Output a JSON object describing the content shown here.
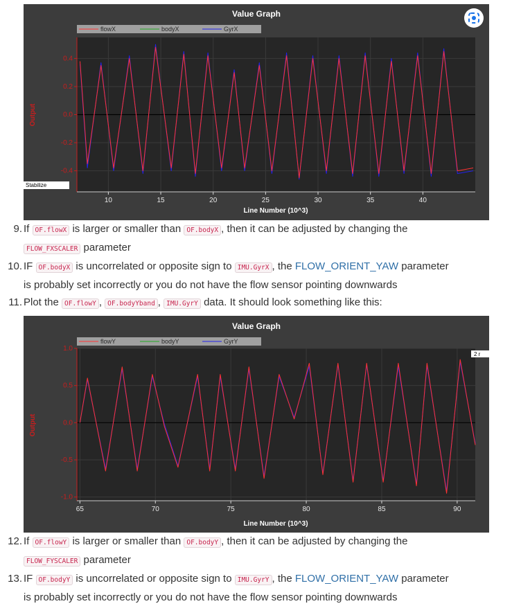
{
  "graph1": {
    "title": "Value Graph",
    "mode_label": "Stabilize",
    "xlabel": "Line Number (10^3)",
    "ylabel": "Output",
    "legend": [
      "flowX",
      "bodyX",
      "GyrX"
    ],
    "colors": {
      "series1": "#ff3333",
      "series2": "#22aa22",
      "series3": "#2222ee",
      "axis": "#c81e1e"
    },
    "lens_icon": "google-lens-icon",
    "chart_data": {
      "type": "line",
      "xlim": [
        7,
        45
      ],
      "ylim": [
        -0.55,
        0.55
      ],
      "x_ticks": [
        10,
        15,
        20,
        25,
        30,
        35,
        40
      ],
      "y_ticks": [
        "0.4",
        "0.2",
        "0.0",
        "-0.2",
        "-0.4"
      ],
      "y_tick_values": [
        0.4,
        0.2,
        0.0,
        -0.2,
        -0.4
      ],
      "series": [
        {
          "name": "flowX",
          "x": [
            7.3,
            8.0,
            9.3,
            10.5,
            12.0,
            13.3,
            14.5,
            16.0,
            17.2,
            18.3,
            19.5,
            20.8,
            22.0,
            23.0,
            24.4,
            25.6,
            27.0,
            28.2,
            29.5,
            30.8,
            32.0,
            33.3,
            34.5,
            35.8,
            37.0,
            38.2,
            39.5,
            40.8,
            42.0,
            43.3,
            44.8
          ],
          "y": [
            0.38,
            -0.35,
            0.35,
            -0.38,
            0.4,
            -0.4,
            0.48,
            -0.38,
            0.43,
            -0.42,
            0.42,
            -0.38,
            0.3,
            -0.38,
            0.35,
            -0.4,
            0.42,
            -0.45,
            0.4,
            -0.4,
            0.4,
            -0.42,
            0.42,
            -0.42,
            0.38,
            -0.4,
            0.42,
            -0.42,
            0.45,
            -0.4,
            -0.38
          ]
        },
        {
          "name": "bodyX",
          "x": [],
          "y": []
        },
        {
          "name": "GyrX",
          "x": [
            7.3,
            8.0,
            9.3,
            10.5,
            12.0,
            13.3,
            14.5,
            16.0,
            17.2,
            18.3,
            19.5,
            20.8,
            22.0,
            23.0,
            24.4,
            25.6,
            27.0,
            28.2,
            29.5,
            30.8,
            32.0,
            33.3,
            34.5,
            35.8,
            37.0,
            38.2,
            39.5,
            40.8,
            42.0,
            43.3,
            44.8
          ],
          "y": [
            0.36,
            -0.38,
            0.37,
            -0.4,
            0.42,
            -0.42,
            0.5,
            -0.4,
            0.45,
            -0.44,
            0.44,
            -0.4,
            0.32,
            -0.4,
            0.37,
            -0.42,
            0.44,
            -0.46,
            0.42,
            -0.42,
            0.42,
            -0.44,
            0.44,
            -0.44,
            0.4,
            -0.42,
            0.44,
            -0.44,
            0.47,
            -0.42,
            -0.4
          ]
        }
      ]
    }
  },
  "graph2": {
    "title": "Value Graph",
    "xlabel": "Line Number (10^3)",
    "ylabel": "Output",
    "corner_label": "2 r",
    "legend": [
      "flowY",
      "bodyY",
      "GyrY"
    ],
    "colors": {
      "series1": "#ff3333",
      "series2": "#22aa22",
      "series3": "#2222ee",
      "axis": "#c81e1e"
    },
    "chart_data": {
      "type": "line",
      "xlim": [
        64.8,
        91.2
      ],
      "ylim": [
        -1.05,
        1.0
      ],
      "x_ticks": [
        65,
        70,
        75,
        80,
        85,
        90
      ],
      "y_ticks": [
        "1.0",
        "0.5",
        "0.0",
        "-0.5",
        "-1.0"
      ],
      "y_tick_values": [
        1.0,
        0.5,
        0.0,
        -0.5,
        -1.0
      ],
      "series": [
        {
          "name": "flowY",
          "x": [
            65.0,
            65.5,
            66.7,
            67.8,
            68.8,
            69.8,
            70.6,
            71.5,
            72.8,
            73.6,
            74.3,
            75.3,
            76.2,
            77.2,
            78.2,
            79.2,
            80.2,
            81.1,
            82.1,
            83.1,
            84.0,
            85.1,
            86.1,
            87.3,
            88.0,
            89.3,
            90.2,
            91.2
          ],
          "y": [
            0.0,
            0.6,
            -0.65,
            0.75,
            -0.65,
            0.65,
            -0.05,
            -0.6,
            0.65,
            -0.65,
            0.65,
            -0.65,
            0.75,
            -0.75,
            0.65,
            0.05,
            0.8,
            -0.7,
            0.8,
            -0.8,
            0.8,
            -0.8,
            0.8,
            -0.85,
            0.8,
            -0.95,
            0.85,
            -0.3
          ]
        },
        {
          "name": "bodyY",
          "x": [],
          "y": []
        },
        {
          "name": "GyrY",
          "x": [
            65.0,
            65.5,
            66.7,
            67.8,
            68.8,
            69.8,
            70.6,
            71.5,
            72.8,
            73.6,
            74.3,
            75.3,
            76.2,
            77.2,
            78.2,
            79.2,
            80.2,
            81.1,
            82.1,
            83.1,
            84.0,
            85.1,
            86.1,
            87.3,
            88.0,
            89.3,
            90.2,
            91.2
          ],
          "y": [
            0.0,
            0.58,
            -0.62,
            0.72,
            -0.62,
            0.62,
            -0.02,
            -0.58,
            0.62,
            -0.62,
            0.62,
            -0.62,
            0.72,
            -0.72,
            0.62,
            0.07,
            0.76,
            -0.68,
            0.78,
            -0.78,
            0.78,
            -0.78,
            0.76,
            -0.82,
            0.77,
            -0.92,
            0.82,
            -0.28
          ]
        }
      ]
    }
  },
  "steps": [
    {
      "num": "9.",
      "t1": "If ",
      "c1": "OF.flowX",
      "t2": " is larger or smaller than ",
      "c2": "OF.bodyX",
      "t3": ", then it can be adjusted by changing the",
      "c3": "FLOW_FXSCALER",
      "t4": " parameter"
    },
    {
      "num": "10.",
      "t1": "IF ",
      "c1": "OF.bodyX",
      "t2": " is uncorrelated or opposite sign to ",
      "c2": "IMU.GyrX",
      "t3": ", the ",
      "link": "FLOW_ORIENT_YAW",
      "t4": " parameter",
      "t5": "is probably set incorrectly or you do not have the flow sensor pointing downwards"
    },
    {
      "num": "11.",
      "t1": "Plot the ",
      "c1": "OF.flowY",
      "t2": ", ",
      "c2": "OF.bodyYband",
      "t3": ", ",
      "c3": "IMU.GyrY",
      "t4": " data. It should look something like this:"
    },
    {
      "num": "12.",
      "t1": "If ",
      "c1": "OF.flowY",
      "t2": " is larger or smaller than ",
      "c2": "OF.bodyY",
      "t3": ", then it can be adjusted by changing the",
      "c3": "FLOW_FYSCALER",
      "t4": " parameter"
    },
    {
      "num": "13.",
      "t1": "IF ",
      "c1": "OF.bodyY",
      "t2": " is uncorrelated or opposite sign to ",
      "c2": "IMU.GyrY",
      "t3": ", the ",
      "link": "FLOW_ORIENT_YAW",
      "t4": " parameter",
      "t5": "is probably set incorrectly or you do not have the flow sensor pointing downwards"
    }
  ]
}
